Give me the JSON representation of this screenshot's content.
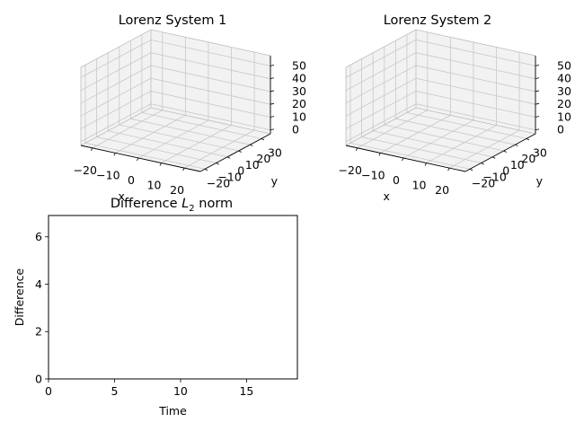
{
  "figure": {
    "background": "#ffffff"
  },
  "axes3d": [
    {
      "title": "Lorenz System 1",
      "xlabel": "x",
      "ylabel": "y",
      "zlabel": "",
      "xticks": [
        "−20",
        "−10",
        "0",
        "10",
        "20"
      ],
      "yticks": [
        "−20",
        "−10",
        "0",
        "10",
        "20",
        "30"
      ],
      "zticks": [
        "0",
        "10",
        "20",
        "30",
        "40",
        "50"
      ],
      "xlim": [
        -20,
        20
      ],
      "ylim": [
        -20,
        30
      ],
      "zlim": [
        0,
        50
      ],
      "pane_color": "#f2f2f2",
      "grid_color": "#c8c8c8"
    },
    {
      "title": "Lorenz System 2",
      "xlabel": "x",
      "ylabel": "y",
      "zlabel": "",
      "xticks": [
        "−20",
        "−10",
        "0",
        "10",
        "20"
      ],
      "yticks": [
        "−20",
        "−10",
        "0",
        "10",
        "20",
        "30"
      ],
      "zticks": [
        "0",
        "10",
        "20",
        "30",
        "40",
        "50"
      ],
      "xlim": [
        -20,
        20
      ],
      "ylim": [
        -20,
        30
      ],
      "zlim": [
        0,
        50
      ],
      "pane_color": "#f2f2f2",
      "grid_color": "#c8c8c8"
    }
  ],
  "axes2d": {
    "title_prefix": "Difference ",
    "title_math": "L",
    "title_sub": "2",
    "title_suffix": " norm",
    "xlabel": "Time",
    "ylabel": "Difference",
    "xticks": [
      "0",
      "5",
      "10",
      "15"
    ],
    "yticks": [
      "0",
      "2",
      "4",
      "6"
    ]
  },
  "chart_data": [
    {
      "type": "line",
      "projection": "3d",
      "title": "Lorenz System 1",
      "xlabel": "x",
      "ylabel": "y",
      "xlim": [
        -20,
        20
      ],
      "ylim": [
        -20,
        30
      ],
      "zlim": [
        0,
        50
      ],
      "series": [],
      "grid": true
    },
    {
      "type": "line",
      "projection": "3d",
      "title": "Lorenz System 2",
      "xlabel": "x",
      "ylabel": "y",
      "xlim": [
        -20,
        20
      ],
      "ylim": [
        -20,
        30
      ],
      "zlim": [
        0,
        50
      ],
      "series": [],
      "grid": true
    },
    {
      "type": "line",
      "title": "Difference L2 norm",
      "xlabel": "Time",
      "ylabel": "Difference",
      "xlim": [
        0,
        18.85
      ],
      "ylim": [
        0,
        6.9
      ],
      "x": [],
      "series": [],
      "grid": false
    }
  ]
}
